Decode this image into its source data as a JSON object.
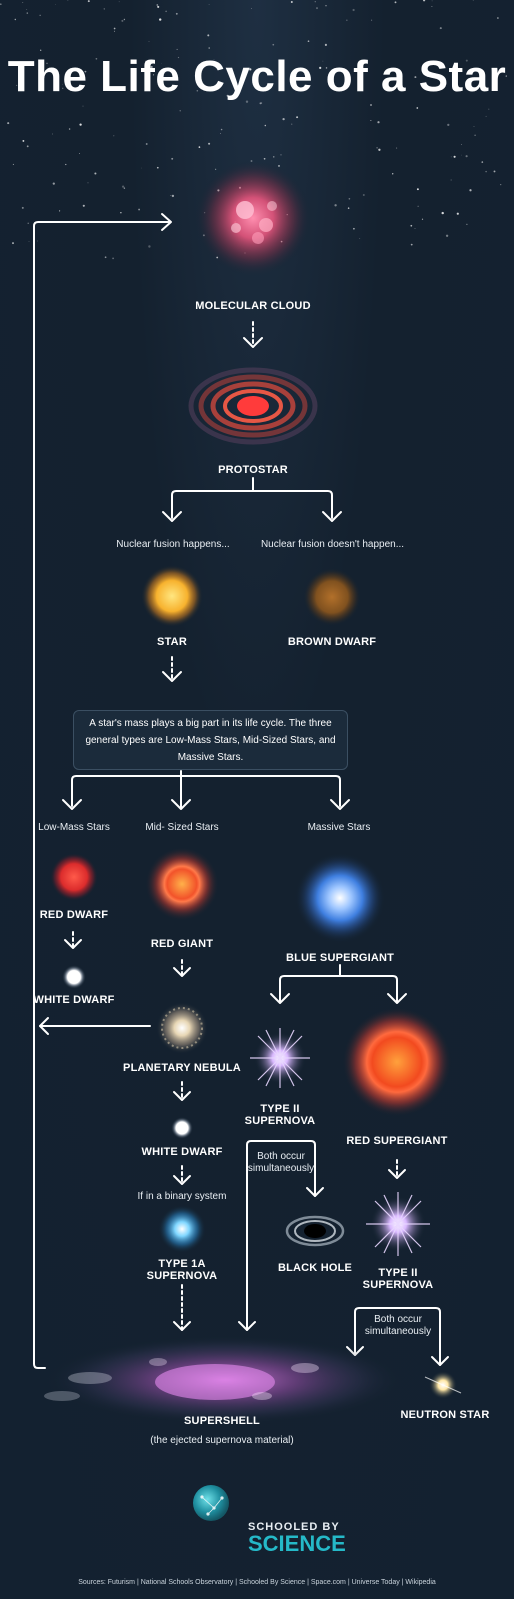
{
  "title": "The Life Cycle of a Star",
  "stages": {
    "molecular_cloud": "MOLECULAR CLOUD",
    "protostar": "PROTOSTAR",
    "star": "STAR",
    "brown_dwarf": "BROWN DWARF",
    "red_dwarf": "RED DWARF",
    "white_dwarf_low": "WHITE DWARF",
    "red_giant": "RED GIANT",
    "planetary_nebula": "PLANETARY NEBULA",
    "white_dwarf_mid": "WHITE DWARF",
    "type_1a_line1": "TYPE 1A",
    "type_1a_line2": "SUPERNOVA",
    "blue_supergiant": "BLUE SUPERGIANT",
    "type_ii_a_line1": "TYPE II",
    "type_ii_a_line2": "SUPERNOVA",
    "black_hole": "BLACK HOLE",
    "red_supergiant": "RED SUPERGIANT",
    "type_ii_b_line1": "TYPE II",
    "type_ii_b_line2": "SUPERNOVA",
    "neutron_star": "NEUTRON STAR",
    "supershell": "SUPERSHELL"
  },
  "notes": {
    "fusion_yes": "Nuclear fusion happens...",
    "fusion_no": "Nuclear fusion doesn't happen...",
    "mass_info": "A star's mass plays a big part in its life cycle. The three general types are Low-Mass Stars, Mid-Sized Stars, and Massive Stars.",
    "low_mass": "Low-Mass Stars",
    "mid_sized": "Mid- Sized Stars",
    "massive": "Massive Stars",
    "binary": "If in a binary system",
    "both_a_line1": "Both occur",
    "both_a_line2": "simultaneously",
    "both_b_line1": "Both occur",
    "both_b_line2": "simultaneously",
    "supershell_sub": "(the ejected supernova material)"
  },
  "logo": {
    "top": "SCHOOLED BY",
    "bottom": "SCIENCE"
  },
  "sources": "Sources: Futurism | National Schools Observatory | Schooled By Science | Space.com | Universe Today | Wikipedia",
  "colors": {
    "background": "#132130",
    "accent": "#25b9c8",
    "arrow": "#ffffff"
  }
}
